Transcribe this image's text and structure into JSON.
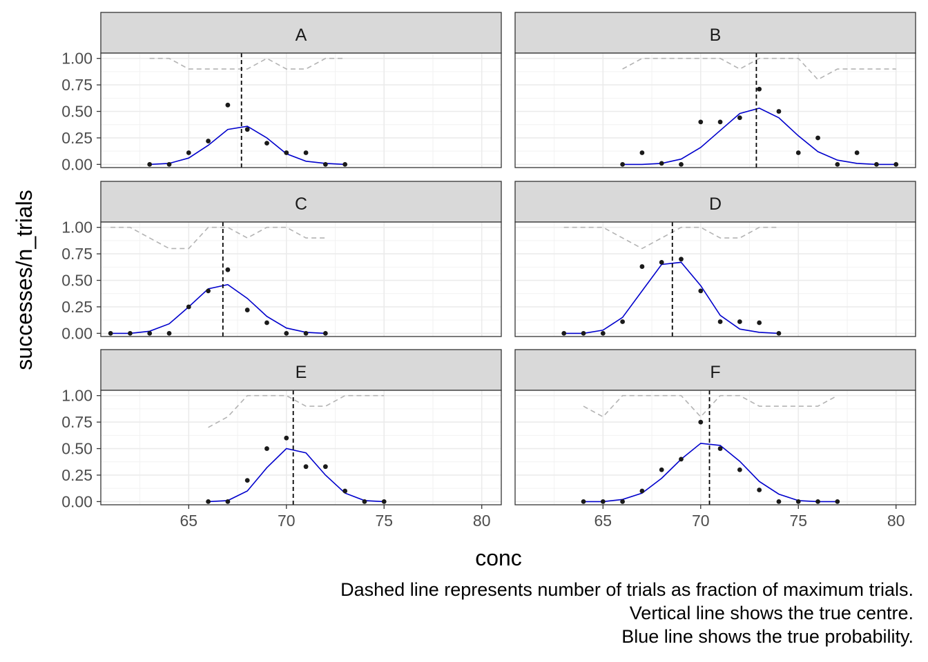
{
  "chart_data": {
    "type": "scatter",
    "layout": "facet grid, 3 rows x 2 columns, shared axes",
    "xlabel": "conc",
    "ylabel": "successes/n_trials",
    "xlim": [
      60.5,
      81
    ],
    "ylim": [
      -0.03,
      1.05
    ],
    "x_ticks": [
      65,
      70,
      75,
      80
    ],
    "x_tick_labels": [
      "65",
      "70",
      "75",
      "80"
    ],
    "y_ticks": [
      0,
      0.25,
      0.5,
      0.75,
      1.0
    ],
    "y_tick_labels": [
      "0.00",
      "0.25",
      "0.50",
      "0.75",
      "1.00"
    ],
    "grid": true,
    "caption": [
      "Dashed line represents number of trials as fraction of maximum trials.",
      "Vertical line shows the true centre.",
      "Blue line shows the true probability."
    ],
    "colors": {
      "points": "#1a1a1a",
      "prob_line": "#0000cc",
      "trials_line": "#b3b3b3",
      "centre_line": "#000000",
      "strip_bg": "#d9d9d9",
      "grid": "#ebebeb"
    },
    "panels": [
      {
        "label": "A",
        "centre": 67.7,
        "points": {
          "x": [
            63,
            64,
            65,
            66,
            67,
            68,
            69,
            70,
            71,
            72,
            73
          ],
          "y": [
            0,
            0,
            0.11,
            0.22,
            0.56,
            0.33,
            0.2,
            0.11,
            0.11,
            0,
            0
          ]
        },
        "prob": {
          "x": [
            63,
            64,
            65,
            66,
            67,
            68,
            69,
            70,
            71,
            72,
            73
          ],
          "y": [
            0,
            0.01,
            0.06,
            0.18,
            0.33,
            0.36,
            0.25,
            0.1,
            0.03,
            0.01,
            0
          ]
        },
        "trials": {
          "x": [
            63,
            64,
            65,
            66,
            67,
            68,
            69,
            70,
            71,
            72,
            73
          ],
          "y": [
            1,
            1,
            0.9,
            0.9,
            0.9,
            0.9,
            1,
            0.9,
            0.9,
            1,
            1
          ]
        }
      },
      {
        "label": "B",
        "centre": 72.85,
        "points": {
          "x": [
            66,
            67,
            68,
            69,
            70,
            71,
            72,
            73,
            74,
            75,
            76,
            77,
            78,
            79,
            80
          ],
          "y": [
            0,
            0.11,
            0.01,
            0,
            0.4,
            0.4,
            0.44,
            0.71,
            0.5,
            0.11,
            0.25,
            0,
            0.11,
            0,
            0
          ]
        },
        "prob": {
          "x": [
            66,
            67,
            68,
            69,
            70,
            71,
            72,
            73,
            74,
            75,
            76,
            77,
            78,
            79,
            80
          ],
          "y": [
            0,
            0,
            0.01,
            0.05,
            0.16,
            0.32,
            0.48,
            0.53,
            0.44,
            0.27,
            0.12,
            0.04,
            0.01,
            0,
            0
          ]
        },
        "trials": {
          "x": [
            66,
            67,
            68,
            69,
            70,
            71,
            72,
            73,
            74,
            75,
            76,
            77,
            78,
            79,
            80
          ],
          "y": [
            0.9,
            1,
            1,
            1,
            1,
            1,
            0.9,
            1,
            1,
            1,
            0.8,
            0.9,
            0.9,
            0.9,
            0.9
          ]
        }
      },
      {
        "label": "C",
        "centre": 66.75,
        "points": {
          "x": [
            61,
            62,
            63,
            64,
            65,
            66,
            67,
            68,
            69,
            70,
            71,
            72
          ],
          "y": [
            0,
            0,
            0,
            0,
            0.25,
            0.4,
            0.6,
            0.22,
            0.1,
            0,
            0,
            0
          ]
        },
        "prob": {
          "x": [
            61,
            62,
            63,
            64,
            65,
            66,
            67,
            68,
            69,
            70,
            71,
            72
          ],
          "y": [
            0,
            0,
            0.02,
            0.09,
            0.25,
            0.42,
            0.46,
            0.33,
            0.16,
            0.05,
            0.01,
            0
          ]
        },
        "trials": {
          "x": [
            61,
            62,
            63,
            64,
            65,
            66,
            67,
            68,
            69,
            70,
            71,
            72
          ],
          "y": [
            1,
            1,
            0.9,
            0.8,
            0.8,
            1,
            1,
            0.9,
            1,
            1,
            0.9,
            0.9
          ]
        }
      },
      {
        "label": "D",
        "centre": 68.55,
        "points": {
          "x": [
            63,
            64,
            65,
            66,
            67,
            68,
            69,
            70,
            71,
            72,
            73,
            74
          ],
          "y": [
            0,
            0,
            0,
            0.11,
            0.63,
            0.67,
            0.7,
            0.4,
            0.11,
            0.11,
            0.1,
            0
          ]
        },
        "prob": {
          "x": [
            63,
            64,
            65,
            66,
            67,
            68,
            69,
            70,
            71,
            72,
            73,
            74
          ],
          "y": [
            0,
            0,
            0.03,
            0.15,
            0.4,
            0.65,
            0.67,
            0.45,
            0.17,
            0.04,
            0.01,
            0
          ]
        },
        "trials": {
          "x": [
            63,
            64,
            65,
            66,
            67,
            68,
            69,
            70,
            71,
            72,
            73,
            74
          ],
          "y": [
            1,
            1,
            1,
            0.9,
            0.8,
            0.9,
            1,
            1,
            0.9,
            0.9,
            1,
            1
          ]
        }
      },
      {
        "label": "E",
        "centre": 70.35,
        "points": {
          "x": [
            66,
            67,
            68,
            69,
            70,
            71,
            72,
            73,
            74,
            75
          ],
          "y": [
            0,
            0,
            0.2,
            0.5,
            0.6,
            0.33,
            0.33,
            0.1,
            0,
            0
          ]
        },
        "prob": {
          "x": [
            66,
            67,
            68,
            69,
            70,
            71,
            72,
            73,
            74,
            75
          ],
          "y": [
            0,
            0.01,
            0.1,
            0.32,
            0.5,
            0.46,
            0.25,
            0.08,
            0.01,
            0
          ]
        },
        "trials": {
          "x": [
            66,
            67,
            68,
            69,
            70,
            71,
            72,
            73,
            74,
            75
          ],
          "y": [
            0.7,
            0.8,
            1,
            1,
            1,
            0.9,
            0.9,
            1,
            1,
            1
          ]
        }
      },
      {
        "label": "F",
        "centre": 70.45,
        "points": {
          "x": [
            64,
            65,
            66,
            67,
            68,
            69,
            70,
            71,
            72,
            73,
            74,
            75,
            76,
            77
          ],
          "y": [
            0,
            0,
            0,
            0.1,
            0.3,
            0.4,
            0.75,
            0.5,
            0.3,
            0.11,
            0,
            0,
            0,
            0
          ]
        },
        "prob": {
          "x": [
            64,
            65,
            66,
            67,
            68,
            69,
            70,
            71,
            72,
            73,
            74,
            75,
            76,
            77
          ],
          "y": [
            0,
            0,
            0.02,
            0.08,
            0.22,
            0.4,
            0.55,
            0.53,
            0.38,
            0.19,
            0.07,
            0.01,
            0,
            0
          ]
        },
        "trials": {
          "x": [
            64,
            65,
            66,
            67,
            68,
            69,
            70,
            71,
            72,
            73,
            74,
            75,
            76,
            77
          ],
          "y": [
            0.9,
            0.8,
            1,
            1,
            1,
            1,
            0.8,
            1,
            1,
            0.9,
            0.9,
            0.9,
            0.9,
            1
          ]
        }
      }
    ]
  }
}
